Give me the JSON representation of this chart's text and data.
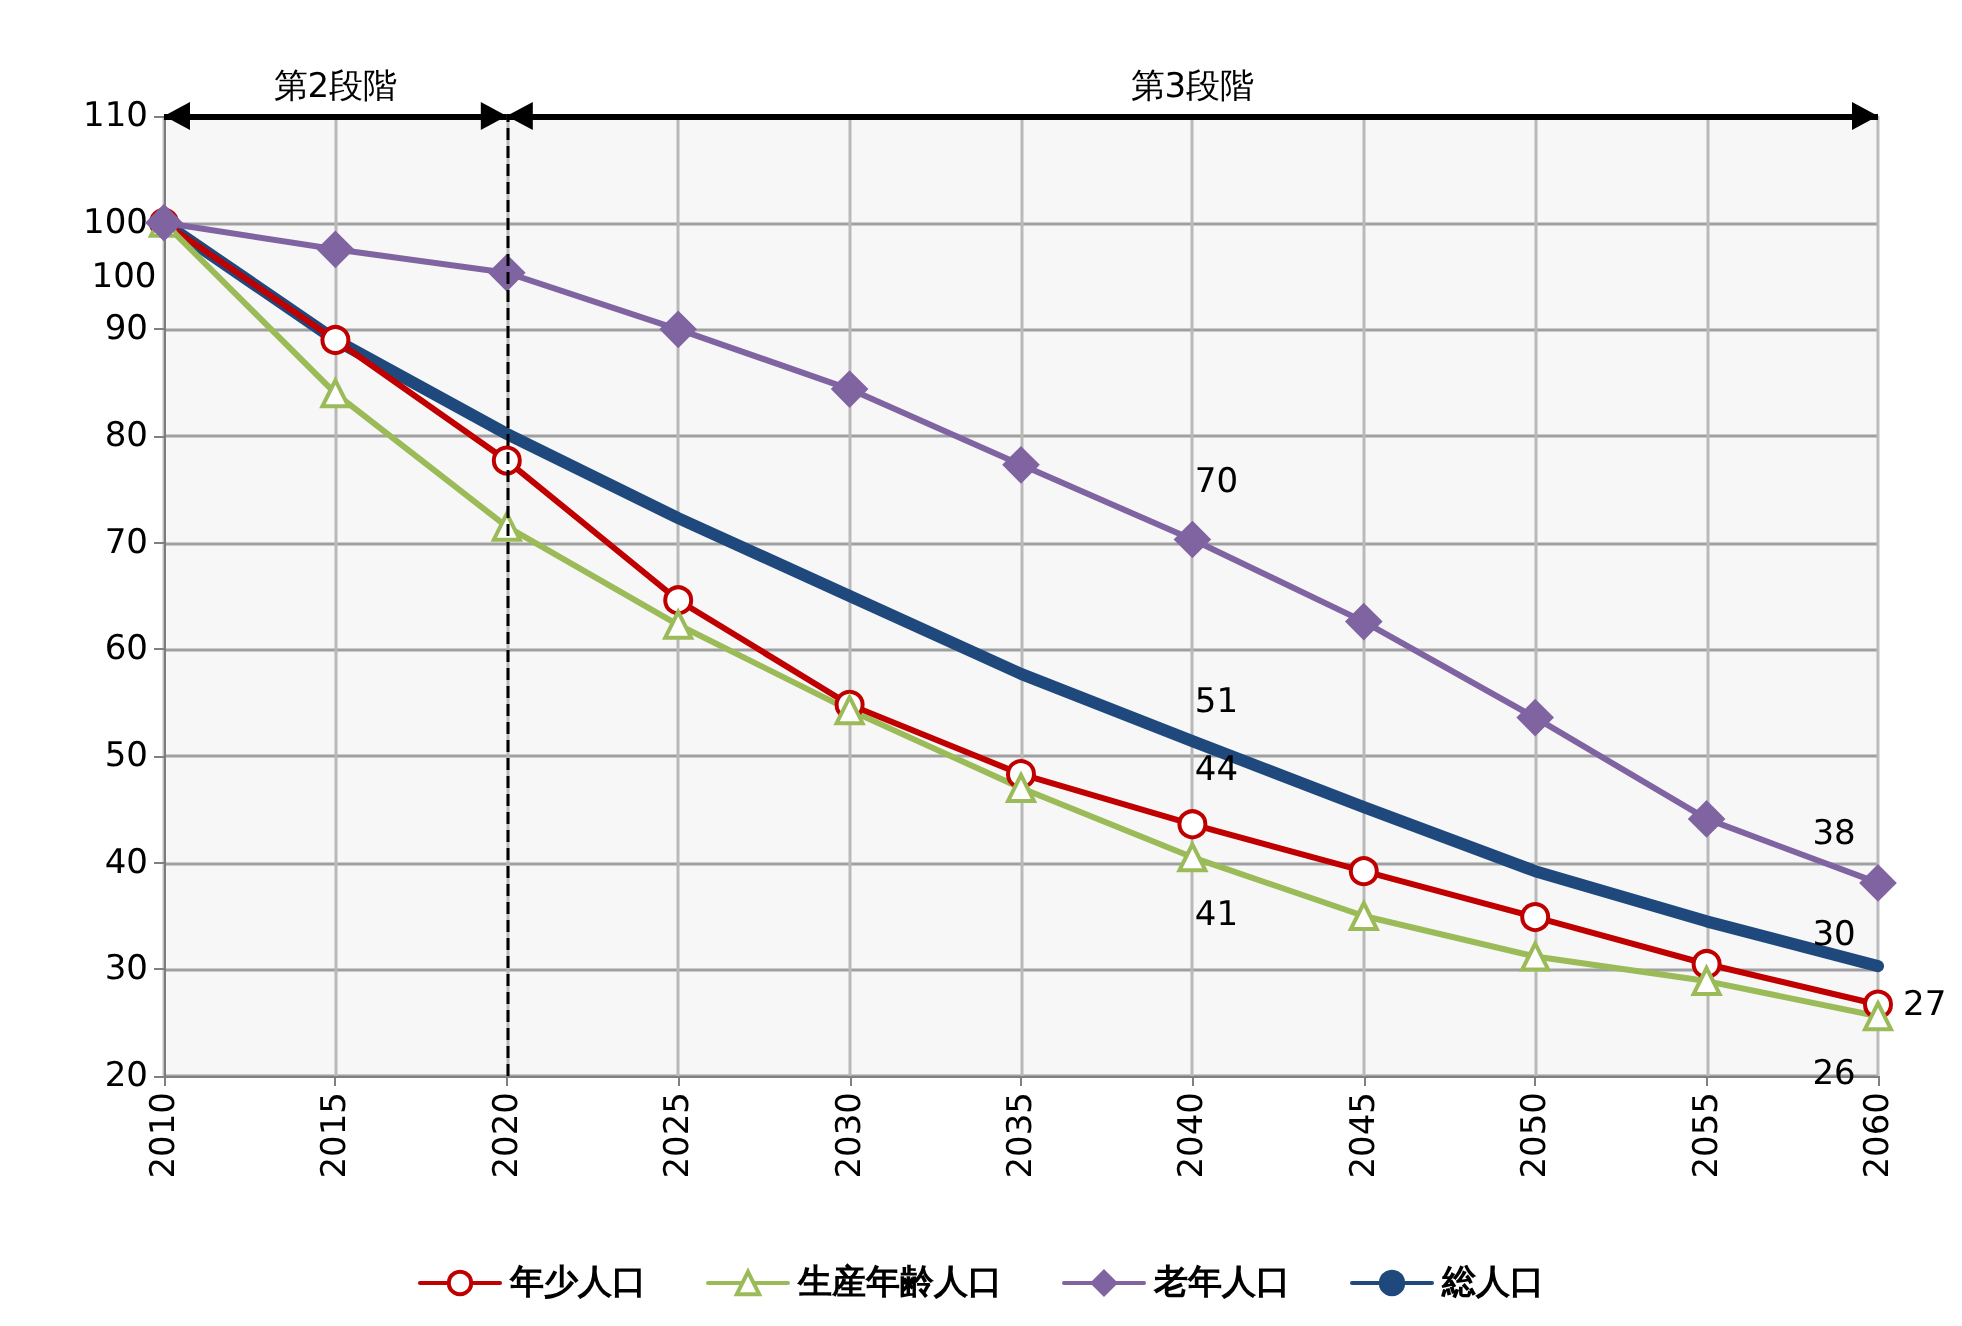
{
  "chart_data": {
    "type": "line",
    "x": [
      2010,
      2015,
      2020,
      2025,
      2030,
      2035,
      2040,
      2045,
      2050,
      2055,
      2060
    ],
    "xlim": [
      2010,
      2060
    ],
    "xticks": [
      2010,
      2015,
      2020,
      2025,
      2030,
      2035,
      2040,
      2045,
      2050,
      2055,
      2060
    ],
    "ylim": [
      20,
      110
    ],
    "yticks": [
      20,
      30,
      40,
      50,
      60,
      70,
      80,
      90,
      100,
      110
    ],
    "grid": true,
    "legend": "bottom",
    "series": [
      {
        "name": "年少人口",
        "color": "#c00000",
        "marker": "circle",
        "values": [
          100,
          89.0,
          77.7,
          64.6,
          54.8,
          48.3,
          43.6,
          39.2,
          34.9,
          30.5,
          26.7
        ],
        "value_labels": [
          null,
          null,
          null,
          null,
          null,
          null,
          "44",
          null,
          null,
          null,
          "27"
        ]
      },
      {
        "name": "生産年齢人口",
        "color": "#9bbb59",
        "marker": "triangle",
        "values": [
          100,
          84.0,
          71.5,
          62.3,
          54.3,
          47.0,
          40.5,
          35.0,
          31.2,
          28.9,
          25.6
        ],
        "value_labels": [
          "100",
          null,
          null,
          null,
          null,
          null,
          "41",
          null,
          null,
          null,
          "26"
        ]
      },
      {
        "name": "老年人口",
        "color": "#8064a2",
        "marker": "diamond",
        "values": [
          100,
          97.5,
          95.3,
          90.0,
          84.4,
          77.3,
          70.3,
          62.6,
          53.6,
          44.1,
          38.1
        ],
        "value_labels": [
          null,
          null,
          null,
          null,
          null,
          null,
          "70",
          null,
          null,
          null,
          "38"
        ]
      },
      {
        "name": "総人口",
        "color": "#1f497d",
        "marker": "none",
        "values": [
          100,
          89.0,
          80.2,
          72.3,
          65.0,
          57.7,
          51.4,
          45.2,
          39.2,
          34.5,
          30.3
        ],
        "value_labels": [
          null,
          null,
          null,
          null,
          null,
          null,
          "51",
          null,
          null,
          null,
          "30"
        ]
      }
    ],
    "ref_lines": [
      {
        "axis": "x",
        "value": 2020,
        "label": null,
        "color": "#000000",
        "line_style": "dashed"
      }
    ],
    "bands": [
      {
        "axis": "x",
        "from": 2010,
        "to": 2020,
        "label": "第2段階"
      },
      {
        "axis": "x",
        "from": 2020,
        "to": 2060,
        "label": "第3段階"
      }
    ]
  }
}
